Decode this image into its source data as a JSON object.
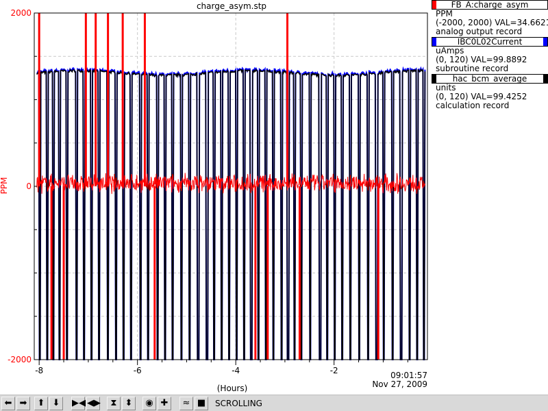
{
  "chart_data": {
    "type": "line",
    "title": "charge_asym.stp",
    "xlabel": "(Hours)",
    "ylabel": "PPM",
    "xlim": [
      -8.1,
      -0.1
    ],
    "ylim": [
      -2000,
      2000
    ],
    "x_ticks": [
      -8,
      -6,
      -4,
      -2
    ],
    "x_tick_labels": [
      "-8",
      "-6",
      "-4",
      "-2"
    ],
    "y_tick_labels": [
      "2000",
      "0",
      "-2000"
    ],
    "time_label": "09:01:57",
    "date_label": "Nov 27, 2009",
    "grid": true,
    "series": [
      {
        "name": "FB_A:charge_asym",
        "color": "#ff0000",
        "axis": "PPM",
        "baseline": 34.6621,
        "noise": 90,
        "spikes_up": [
          -8.0,
          -7.05,
          -6.85,
          -6.6,
          -6.3,
          -5.85,
          -2.95
        ],
        "spikes_down": [
          -7.75,
          -7.5,
          -5.65,
          -3.6,
          -3.35,
          -2.7,
          -1.1
        ]
      },
      {
        "name": "IBC0L02Current",
        "color": "#0000ff",
        "axis": "uAmps",
        "baseline": 99.8892
      },
      {
        "name": "hac_bcm_average",
        "color": "#000000",
        "axis": "units",
        "baseline": 99.4252,
        "trips": [
          -8.0,
          -7.85,
          -7.72,
          -7.6,
          -7.45,
          -7.25,
          -7.1,
          -6.95,
          -6.8,
          -6.62,
          -6.45,
          -6.3,
          -6.15,
          -5.95,
          -5.8,
          -5.6,
          -5.45,
          -5.3,
          -5.12,
          -4.95,
          -4.78,
          -4.6,
          -4.45,
          -4.3,
          -4.15,
          -4.0,
          -3.85,
          -3.7,
          -3.55,
          -3.4,
          -3.25,
          -3.08,
          -2.95,
          -2.82,
          -2.68,
          -2.5,
          -2.3,
          -2.15,
          -2.0,
          -1.85,
          -1.68,
          -1.5,
          -1.32,
          -1.15,
          -1.0,
          -0.82,
          -0.65,
          -0.48,
          -0.32,
          -0.18
        ]
      }
    ]
  },
  "legend": [
    {
      "name": "FB_A:charge_asym",
      "color": "#ff0000",
      "units": "PPM",
      "range_value": "(-2000, 2000) VAL=34.6621",
      "record": "analog output record"
    },
    {
      "name": "IBC0L02Current",
      "color": "#0000ff",
      "units": "uAmps",
      "range_value": "(0, 120) VAL=99.8892",
      "record": "subroutine record"
    },
    {
      "name": "hac_bcm_average",
      "color": "#000000",
      "units": "units",
      "range_value": "(0, 120) VAL=99.4252",
      "record": "calculation record"
    }
  ],
  "toolbar": {
    "mode_label": "SCROLLING",
    "buttons": [
      "pan-left-icon",
      "pan-right-icon",
      "pan-up-icon",
      "pan-down-icon",
      "zoom-in-x-icon",
      "zoom-out-x-icon",
      "zoom-in-y-icon",
      "zoom-out-y-icon",
      "zoom-icon",
      "add-icon",
      "scroll-mode-icon",
      "stop-icon"
    ]
  }
}
